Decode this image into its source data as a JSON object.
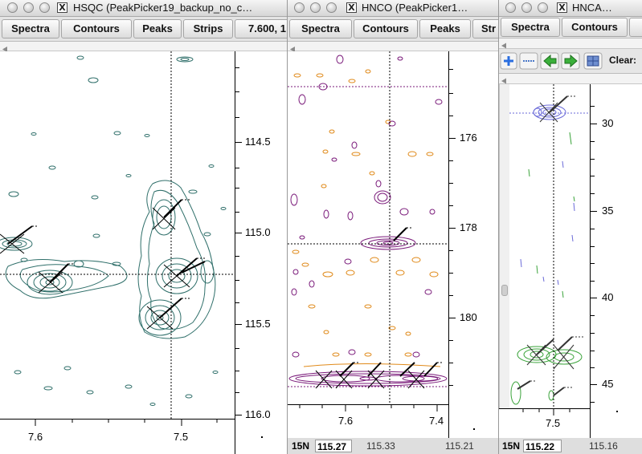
{
  "windows": {
    "hsqc": {
      "title": "HSQC (PeakPicker19_backup_no_c…",
      "buttons": [
        "Spectra",
        "Contours",
        "Peaks",
        "Strips",
        "7.600, 1"
      ],
      "y_ticks": [
        "114.5",
        "115.0",
        "115.5",
        "116.0"
      ],
      "x_ticks": [
        "7.6",
        "7.5"
      ],
      "contour_color": "#2f6f6a"
    },
    "hnco": {
      "title": "HNCO (PeakPicker1…",
      "buttons": [
        "Spectra",
        "Contours",
        "Peaks",
        "Str"
      ],
      "y_ticks": [
        "176",
        "178",
        "180"
      ],
      "x_ticks": [
        "7.6",
        "7.4"
      ],
      "status": {
        "axis_label": "15N",
        "value": "115.27",
        "left": "115.33",
        "right": "115.21"
      },
      "pos_color": "#7a1a7a",
      "neg_color": "#e08a1a"
    },
    "hnca": {
      "title": "HNCA…",
      "buttons": [
        "Spectra",
        "Contours"
      ],
      "tools": {
        "add_icon": "plus-icon",
        "line_icon": "dash-icon",
        "back_icon": "arrow-left-icon",
        "forward_icon": "arrow-right-icon",
        "grid_icon": "grid-icon",
        "clear_label": "Clear:"
      },
      "y_ticks": [
        "30",
        "35",
        "40",
        "45"
      ],
      "x_ticks": [
        "7.5"
      ],
      "status": {
        "axis_label": "15N",
        "value": "115.22",
        "extra": "115.16"
      },
      "pos_color": "#3aa33a",
      "neg_color": "#6a6ad8"
    }
  }
}
